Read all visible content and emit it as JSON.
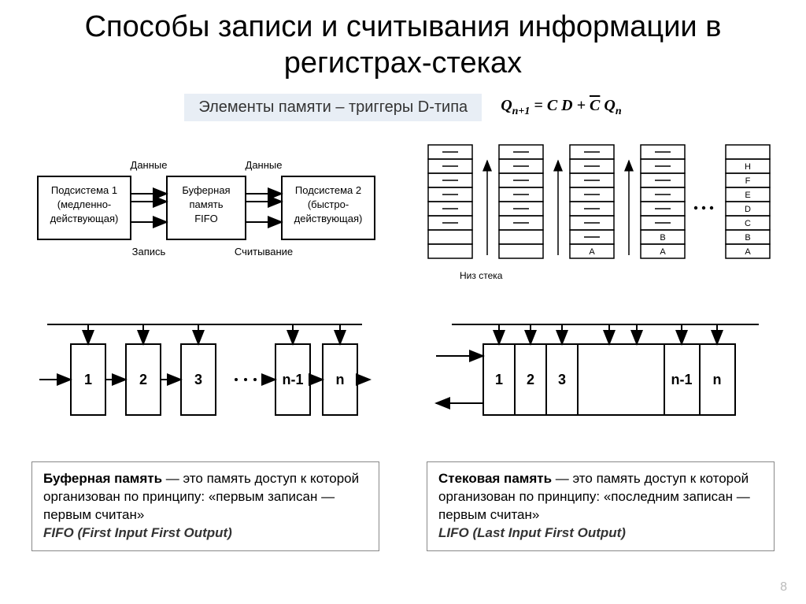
{
  "title": "Способы записи и считывания информации в регистрах-стеках",
  "subtitle": "Элементы памяти – триггеры D-типа",
  "formula_html": "Q<sub>n+1</sub> = C D + <span style='text-decoration:overline'>C</span> Q<sub>n</sub>",
  "flow": {
    "box1_lines": [
      "Подсистема 1",
      "(медленно-",
      "действующая)"
    ],
    "box2_lines": [
      "Буферная",
      "память",
      "FIFO"
    ],
    "box3_lines": [
      "Подсистема 2",
      "(быстро-",
      "действующая)"
    ],
    "top_left": "Данные",
    "top_right": "Данные",
    "bot_left": "Запись",
    "bot_right": "Считывание"
  },
  "stacks": {
    "caption": "Низ стека",
    "col3": [
      "A"
    ],
    "col4": [
      "A",
      "B"
    ],
    "col5": [
      "A",
      "B",
      "C",
      "D",
      "E",
      "F",
      "H"
    ],
    "rows": 8
  },
  "fifo_cells": [
    "1",
    "2",
    "3",
    "n-1",
    "n"
  ],
  "lifo_cells": [
    "1",
    "2",
    "3",
    "n-1",
    "n"
  ],
  "defs": {
    "fifo": {
      "lead": "Буферная память",
      "body": " — это память доступ к которой организован по принципу: «первым записан — первым считан»",
      "abbr": "FIFO (First Input First Output)"
    },
    "lifo": {
      "lead": "Стековая память",
      "body": " — это память доступ к которой организован по принципу: «последним записан — первым считан»",
      "abbr": "LIFO (Last Input First Output)"
    }
  },
  "page": "8",
  "colors": {
    "stroke": "#000000",
    "bg": "#ffffff",
    "subtitle_bg": "#e8eef5"
  }
}
